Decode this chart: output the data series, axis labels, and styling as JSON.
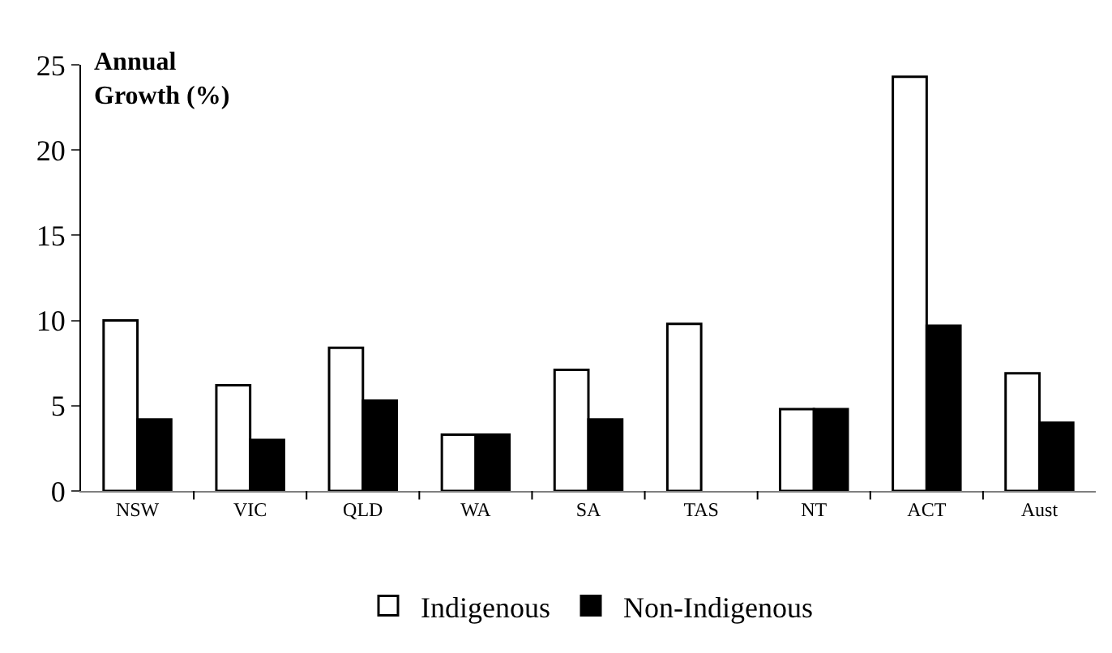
{
  "chart_data": {
    "type": "bar",
    "ylabel": "Annual\nGrowth (%)",
    "categories": [
      "NSW",
      "VIC",
      "QLD",
      "WA",
      "SA",
      "TAS",
      "NT",
      "ACT",
      "Aust"
    ],
    "series": [
      {
        "name": "Indigenous",
        "color": "#ffffff",
        "values": [
          10.0,
          6.2,
          8.4,
          3.3,
          7.1,
          9.8,
          4.8,
          24.3,
          6.9
        ]
      },
      {
        "name": "Non-Indigenous",
        "color": "#000000",
        "values": [
          4.2,
          3.0,
          5.3,
          3.3,
          4.2,
          null,
          4.8,
          9.7,
          4.0
        ]
      }
    ],
    "ylim": [
      0,
      25
    ],
    "yticks": [
      0,
      5,
      10,
      15,
      20,
      25
    ],
    "legend": "bottom"
  }
}
